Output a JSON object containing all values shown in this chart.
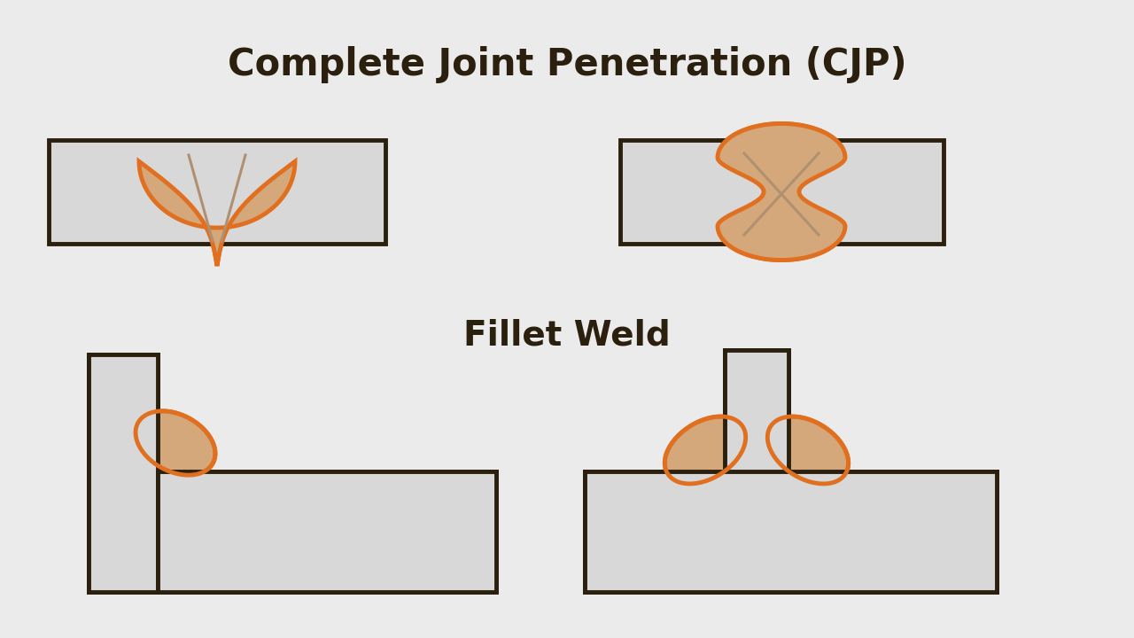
{
  "bg_color": "#ebebeb",
  "plate_fill": "#d8d8d8",
  "plate_edge": "#2b1f0e",
  "weld_fill": "#d4a87a",
  "weld_edge": "#e07020",
  "title1": "Complete Joint Penetration (CJP)",
  "title2": "Fillet Weld",
  "title_color": "#2b1f0e",
  "title_fontsize": 30,
  "subtitle_fontsize": 28,
  "plate_linewidth": 3.5,
  "weld_linewidth": 3.5
}
